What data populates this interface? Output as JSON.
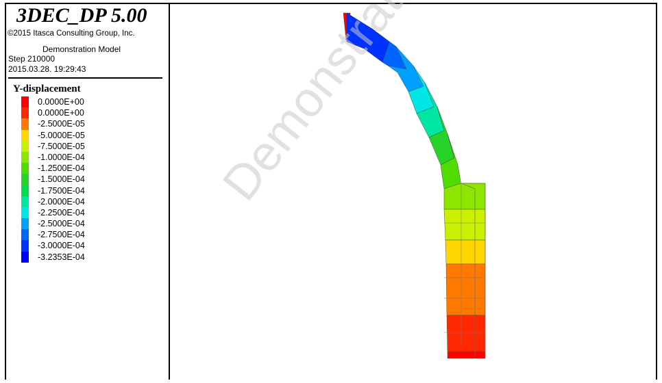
{
  "header": {
    "app_title": "3DEC_DP 5.00",
    "copyright": "©2015 Itasca Consulting Group, Inc.",
    "model_name": "Demonstration Model",
    "step": "Step 210000",
    "datetime": "2015.03.28. 19:29:43"
  },
  "legend": {
    "title": "Y-displacement",
    "entries": [
      {
        "label": "0.0000E+00",
        "color": "#ff0000"
      },
      {
        "label": "0.0000E+00",
        "color": "#ff2800"
      },
      {
        "label": "-2.5000E-05",
        "color": "#ff7800"
      },
      {
        "label": "-5.0000E-05",
        "color": "#ffd700"
      },
      {
        "label": "-7.5000E-05",
        "color": "#c8f000"
      },
      {
        "label": "-1.0000E-04",
        "color": "#8ce600"
      },
      {
        "label": "-1.2500E-04",
        "color": "#50dc00"
      },
      {
        "label": "-1.5000E-04",
        "color": "#28d228"
      },
      {
        "label": "-1.7500E-04",
        "color": "#00dc50"
      },
      {
        "label": "-2.0000E-04",
        "color": "#00e6a0"
      },
      {
        "label": "-2.2500E-04",
        "color": "#00e6e6"
      },
      {
        "label": "-2.5000E-04",
        "color": "#00a0ff"
      },
      {
        "label": "-2.7500E-04",
        "color": "#0064ff"
      },
      {
        "label": "-3.0000E-04",
        "color": "#0032ff"
      },
      {
        "label": "-3.2353E-04",
        "color": "#0000ff"
      }
    ]
  },
  "watermark": "Demonstration Model"
}
